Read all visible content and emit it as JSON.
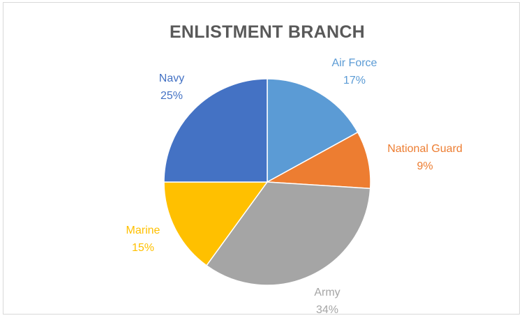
{
  "chart_data": {
    "type": "pie",
    "title": "ENLISTMENT BRANCH",
    "slices": [
      {
        "label": "Air Force",
        "value": 17,
        "value_label": "17%",
        "color": "#5b9bd5"
      },
      {
        "label": "National Guard",
        "value": 9,
        "value_label": "9%",
        "color": "#ed7d31"
      },
      {
        "label": "Army",
        "value": 34,
        "value_label": "34%",
        "color": "#a5a5a5"
      },
      {
        "label": "Marine",
        "value": 15,
        "value_label": "15%",
        "color": "#ffc000"
      },
      {
        "label": "Navy",
        "value": 25,
        "value_label": "25%",
        "color": "#4472c4"
      }
    ],
    "start_angle": "12 o'clock",
    "direction": "clockwise",
    "legend": "none",
    "data_labels": "outside"
  }
}
